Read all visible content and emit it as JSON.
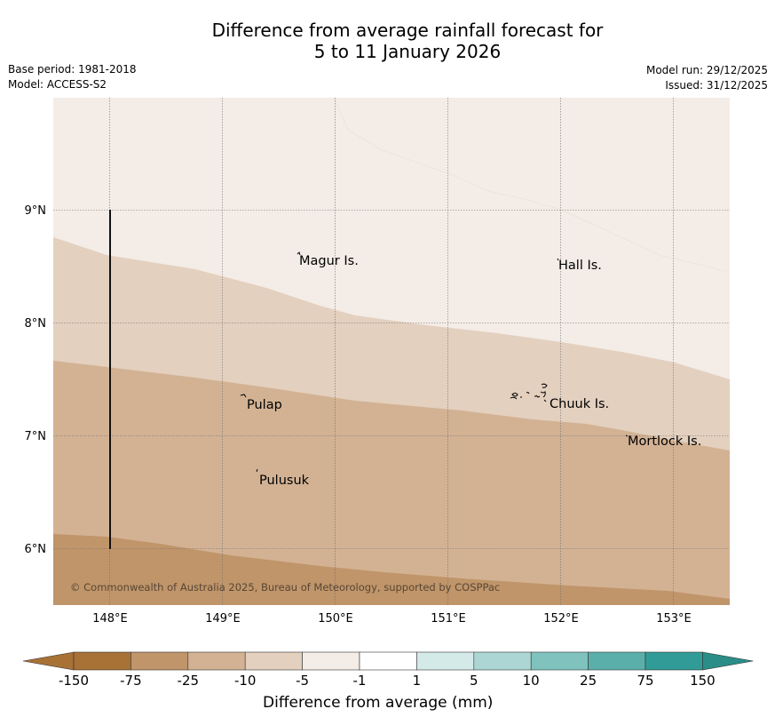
{
  "header": {
    "title_line1": "Difference from average rainfall forecast for",
    "title_line2": "5 to 11 January 2026",
    "base_period": "Base period: 1981-2018",
    "model": "Model: ACCESS-S2",
    "model_run": "Model run: 29/12/2025",
    "issued": "Issued: 31/12/2025"
  },
  "map": {
    "lon_ticks": [
      "148°E",
      "149°E",
      "150°E",
      "151°E",
      "152°E",
      "153°E"
    ],
    "lat_ticks": [
      "9°N",
      "8°N",
      "7°N",
      "6°N"
    ],
    "places": [
      {
        "name": "Magur Is."
      },
      {
        "name": "Hall Is."
      },
      {
        "name": "Pulap"
      },
      {
        "name": "Chuuk Is."
      },
      {
        "name": "Mortlock Is."
      },
      {
        "name": "Pulusuk"
      }
    ],
    "copyright": "© Commonwealth of Australia 2025, Bureau of Meteorology, supported by COSPPac",
    "shade_colors": {
      "cat_-10_-5": "#f4ece6",
      "cat_-25_-10": "#e3d0bf",
      "cat_-75_-25": "#d3b294",
      "cat_-150_-75": "#c0956a"
    }
  },
  "legend": {
    "title": "Difference from average (mm)",
    "ticks": [
      "-150",
      "-75",
      "-25",
      "-10",
      "-5",
      "-1",
      "1",
      "5",
      "10",
      "25",
      "75",
      "150"
    ],
    "colors": [
      "#a87136",
      "#c0956a",
      "#d3b294",
      "#e3d0bf",
      "#f4ece6",
      "#ffffff",
      "#d4eae8",
      "#acd6d3",
      "#80c2be",
      "#5aafab",
      "#319c97"
    ],
    "extend_low_color": "#a87136",
    "extend_high_color": "#2a8d88"
  }
}
